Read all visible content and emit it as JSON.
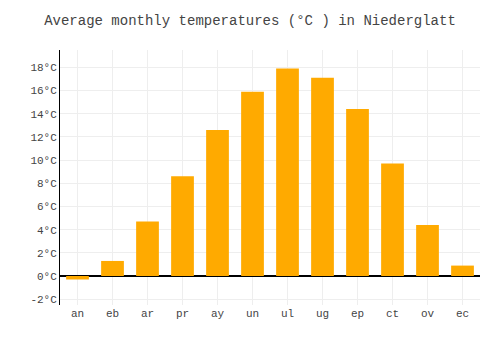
{
  "chart_data": {
    "type": "bar",
    "title": "Average monthly temperatures (°C ) in Niederglatt",
    "categories": [
      "an",
      "eb",
      "ar",
      "pr",
      "ay",
      "un",
      "ul",
      "ug",
      "ep",
      "ct",
      "ov",
      "ec"
    ],
    "values": [
      -0.3,
      1.3,
      4.7,
      8.6,
      12.6,
      15.9,
      17.9,
      17.1,
      14.4,
      9.7,
      4.4,
      0.9
    ],
    "color": "#FFAA00",
    "ylim": [
      -2.5,
      19.5
    ],
    "yticks": [
      {
        "value": -2,
        "label": "-2°C"
      },
      {
        "value": 0,
        "label": "0°C"
      },
      {
        "value": 2,
        "label": "2°C"
      },
      {
        "value": 4,
        "label": "4°C"
      },
      {
        "value": 6,
        "label": "6°C"
      },
      {
        "value": 8,
        "label": "8°C"
      },
      {
        "value": 10,
        "label": "10°C"
      },
      {
        "value": 12,
        "label": "12°C"
      },
      {
        "value": 14,
        "label": "14°C"
      },
      {
        "value": 16,
        "label": "16°C"
      },
      {
        "value": 18,
        "label": "18°C"
      }
    ],
    "grid": true
  }
}
